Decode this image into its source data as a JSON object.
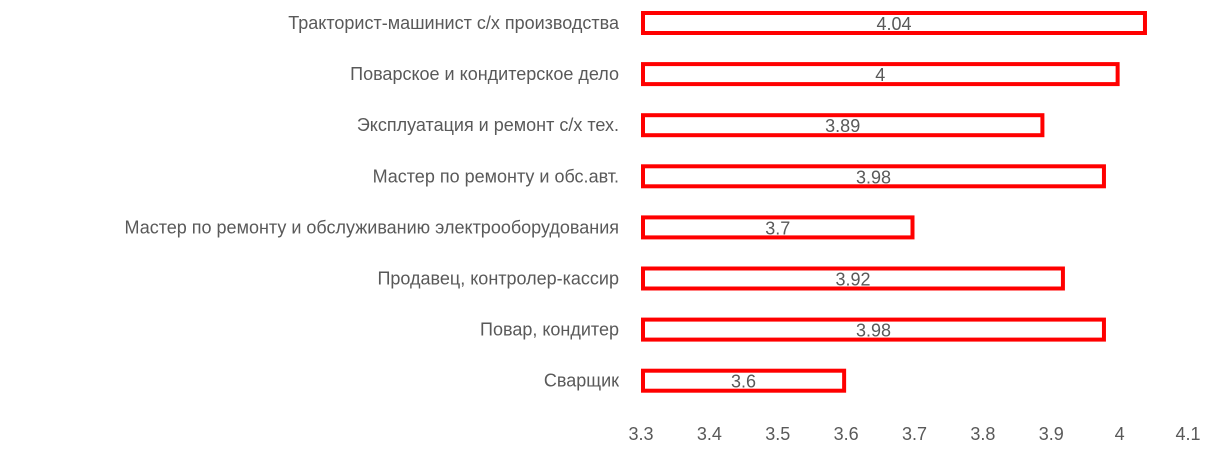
{
  "chart_data": {
    "type": "bar",
    "orientation": "horizontal",
    "categories": [
      "Тракторист-машинист с/х производства",
      "Поварское и кондитерское дело",
      "Эксплуатация и ремонт с/х тех.",
      "Мастер по ремонту и обс.авт.",
      "Мастер по ремонту и обслуживанию электрооборудования",
      "Продавец, контролер-кассир",
      "Повар, кондитер",
      "Сварщик"
    ],
    "values": [
      4.04,
      4,
      3.89,
      3.98,
      3.7,
      3.92,
      3.98,
      3.6
    ],
    "data_labels": [
      "4.04",
      "4",
      "3.89",
      "3.98",
      "3.7",
      "3.92",
      "3.98",
      "3.6"
    ],
    "xlim": [
      3.3,
      4.1
    ],
    "x_ticks": [
      "3.3",
      "3.4",
      "3.5",
      "3.6",
      "3.7",
      "3.8",
      "3.9",
      "4",
      "4.1"
    ],
    "title": "",
    "xlabel": "",
    "ylabel": "",
    "grid": false,
    "legend": "none",
    "colors": {
      "bar_stroke": "#ff0000",
      "bar_fill": "#ffffff",
      "text": "#595959"
    }
  }
}
